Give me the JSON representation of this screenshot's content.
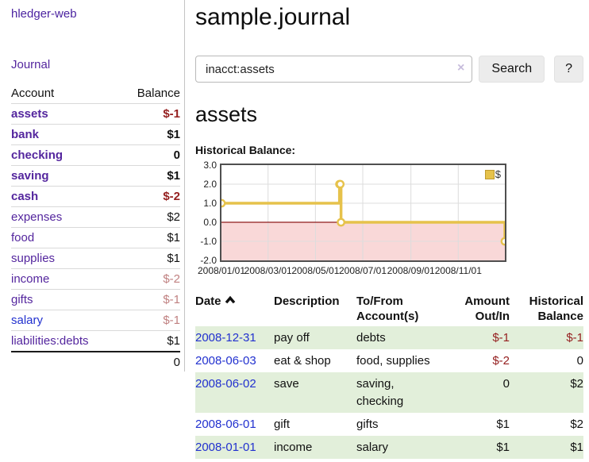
{
  "colors": {
    "link_purple": "#54269e",
    "link_blue": "#2231cf",
    "negative_strong": "#952020",
    "negative_soft": "#c08181",
    "row_green": "#e2efda",
    "series_gold": "#e6c24b",
    "negative_region_pink": "#f9d8d8",
    "zero_line_red": "#8f1a1a"
  },
  "sidebar": {
    "brand": "hledger-web",
    "journal_link": "Journal",
    "accounts": {
      "headers": {
        "account": "Account",
        "balance": "Balance"
      },
      "rows": [
        {
          "name": "assets",
          "balance": "$-1",
          "depth": 1,
          "active": true
        },
        {
          "name": "bank",
          "balance": "$1",
          "depth": 2,
          "active": true
        },
        {
          "name": "checking",
          "balance": "0",
          "depth": 3,
          "active": true
        },
        {
          "name": "saving",
          "balance": "$1",
          "depth": 3,
          "active": true
        },
        {
          "name": "cash",
          "balance": "$-2",
          "depth": 2,
          "active": true
        },
        {
          "name": "expenses",
          "balance": "$2",
          "depth": 1,
          "active": false
        },
        {
          "name": "food",
          "balance": "$1",
          "depth": 2,
          "active": false
        },
        {
          "name": "supplies",
          "balance": "$1",
          "depth": 2,
          "active": false
        },
        {
          "name": "income",
          "balance": "$-2",
          "depth": 1,
          "active": false
        },
        {
          "name": "gifts",
          "balance": "$-1",
          "depth": 2,
          "active": false
        },
        {
          "name": "salary",
          "balance": "$-1",
          "depth": 2,
          "active": false,
          "unvisited": true
        },
        {
          "name": "liabilities:debts",
          "balance": "$1",
          "depth": 1,
          "active": false
        }
      ],
      "total": "0"
    }
  },
  "main": {
    "title": "sample.journal",
    "search": {
      "value": "inacct:assets",
      "clear": "×",
      "button": "Search",
      "help": "?"
    },
    "heading": "assets",
    "chart_title": "Historical Balance:"
  },
  "chart_data": {
    "type": "line",
    "step": true,
    "title": "Historical Balance",
    "legend": [
      {
        "label": "$",
        "color": "#e6c24b"
      }
    ],
    "x_range": [
      "2008-01-01",
      "2008-12-31"
    ],
    "ylim": [
      -2,
      3
    ],
    "yticks": [
      3,
      2,
      1,
      0,
      -1,
      -2
    ],
    "xticks": [
      {
        "label": "2008/01/01",
        "date": "2008-01-01"
      },
      {
        "label": "2008/03/01",
        "date": "2008-03-01"
      },
      {
        "label": "2008/05/01",
        "date": "2008-05-01"
      },
      {
        "label": "2008/07/01",
        "date": "2008-07-01"
      },
      {
        "label": "2008/09/01",
        "date": "2008-09-01"
      },
      {
        "label": "2008/11/01",
        "date": "2008-11-01"
      }
    ],
    "series": [
      {
        "name": "$",
        "points": [
          [
            "2008-01-01",
            1
          ],
          [
            "2008-06-01",
            2
          ],
          [
            "2008-06-02",
            2
          ],
          [
            "2008-06-03",
            0
          ],
          [
            "2008-12-31",
            -1
          ]
        ]
      }
    ],
    "negative_region_fill": "#f9d8d8",
    "zero_line_color": "#8f1a1a",
    "grid": true,
    "legend_position": "top-right"
  },
  "transactions": {
    "headers": [
      {
        "lines": [
          "Date"
        ],
        "align": "left",
        "sort": "asc"
      },
      {
        "lines": [
          "Description"
        ],
        "align": "left"
      },
      {
        "lines": [
          "To/From",
          "Account(s)"
        ],
        "align": "left"
      },
      {
        "lines": [
          "Amount",
          "Out/In"
        ],
        "align": "right"
      },
      {
        "lines": [
          "Historical",
          "Balance"
        ],
        "align": "right"
      }
    ],
    "rows": [
      {
        "date": "2008-12-31",
        "description": "pay off",
        "accounts": "debts",
        "amount": "$-1",
        "balance": "$-1"
      },
      {
        "date": "2008-06-03",
        "description": "eat & shop",
        "accounts": "food, supplies",
        "amount": "$-2",
        "balance": "0"
      },
      {
        "date": "2008-06-02",
        "description": "save",
        "accounts": "saving, checking",
        "amount": "0",
        "balance": "$2"
      },
      {
        "date": "2008-06-01",
        "description": "gift",
        "accounts": "gifts",
        "amount": "$1",
        "balance": "$2"
      },
      {
        "date": "2008-01-01",
        "description": "income",
        "accounts": "salary",
        "amount": "$1",
        "balance": "$1"
      }
    ]
  }
}
